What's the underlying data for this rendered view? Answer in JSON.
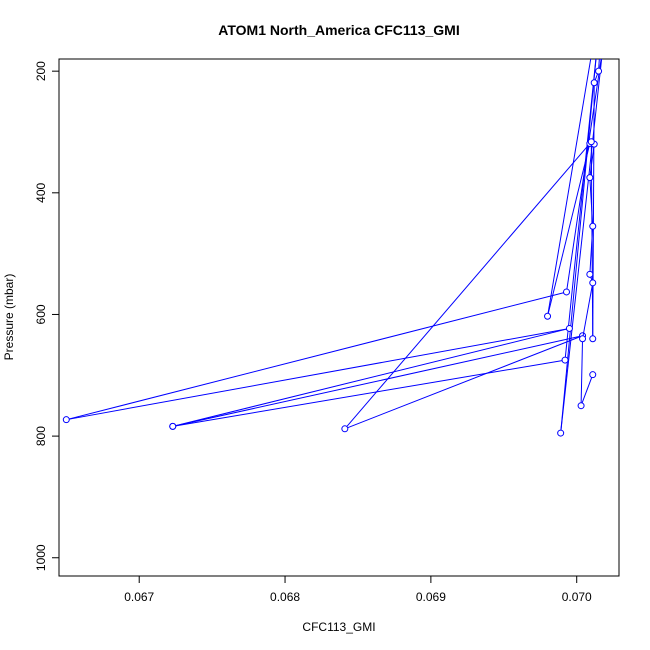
{
  "chart_data": {
    "type": "line",
    "title": "ATOM1 North_America CFC113_GMI",
    "xlabel": "CFC113_GMI",
    "ylabel": "Pressure (mbar)",
    "xlim": [
      0.06645,
      0.07029
    ],
    "ylim": [
      1030,
      180
    ],
    "y_reversed": true,
    "x_ticks": [
      {
        "value": 0.067,
        "label": "0.067"
      },
      {
        "value": 0.068,
        "label": "0.068"
      },
      {
        "value": 0.069,
        "label": "0.069"
      },
      {
        "value": 0.07,
        "label": "0.070"
      }
    ],
    "y_ticks": [
      {
        "value": 200,
        "label": "200"
      },
      {
        "value": 400,
        "label": "400"
      },
      {
        "value": 600,
        "label": "600"
      },
      {
        "value": 800,
        "label": "800"
      },
      {
        "value": 1000,
        "label": "1000"
      }
    ],
    "grid": false,
    "line_color": "#0000ff",
    "series": [
      {
        "style": "lines+open-circles",
        "points": [
          {
            "x": 0.07011,
            "y": 160
          },
          {
            "x": 0.0698,
            "y": 603
          },
          {
            "x": 0.07009,
            "y": 319
          },
          {
            "x": 0.06841,
            "y": 788
          },
          {
            "x": 0.07004,
            "y": 635
          },
          {
            "x": 0.06723,
            "y": 784
          },
          {
            "x": 0.06995,
            "y": 623
          },
          {
            "x": 0.0665,
            "y": 773
          },
          {
            "x": 0.06993,
            "y": 563
          },
          {
            "x": 0.07018,
            "y": 160
          },
          {
            "x": 0.06989,
            "y": 795
          },
          {
            "x": 0.07014,
            "y": 160
          },
          {
            "x": 0.06992,
            "y": 675
          },
          {
            "x": 0.06723,
            "y": 784
          }
        ]
      },
      {
        "style": "lines+open-circles",
        "points": [
          {
            "x": 0.07011,
            "y": 699
          },
          {
            "x": 0.07003,
            "y": 750
          },
          {
            "x": 0.07004,
            "y": 640
          },
          {
            "x": 0.07011,
            "y": 548
          },
          {
            "x": 0.07009,
            "y": 534
          },
          {
            "x": 0.07011,
            "y": 455
          },
          {
            "x": 0.07009,
            "y": 375
          },
          {
            "x": 0.07012,
            "y": 320
          },
          {
            "x": 0.0701,
            "y": 316
          },
          {
            "x": 0.07011,
            "y": 640
          },
          {
            "x": 0.07012,
            "y": 219
          },
          {
            "x": 0.07015,
            "y": 200
          },
          {
            "x": 0.07016,
            "y": 160
          }
        ]
      }
    ]
  }
}
